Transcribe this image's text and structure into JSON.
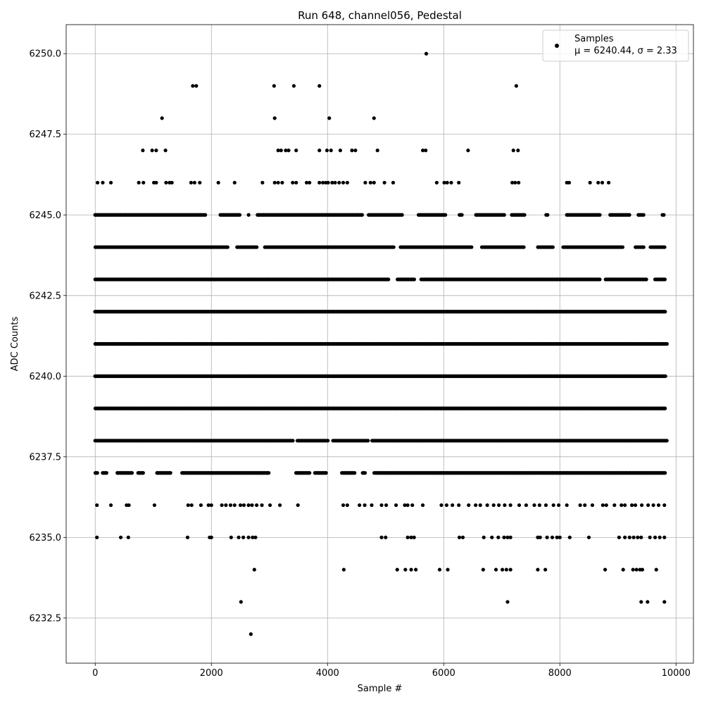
{
  "chart_data": {
    "type": "scatter",
    "title": "Run 648, channel056, Pedestal",
    "xlabel": "Sample #",
    "ylabel": "ADC Counts",
    "xlim": [
      -500,
      10300
    ],
    "ylim": [
      6231.1,
      6250.9
    ],
    "xticks": [
      0,
      2000,
      4000,
      6000,
      8000,
      10000
    ],
    "xtick_labels": [
      "0",
      "2000",
      "4000",
      "6000",
      "8000",
      "10000"
    ],
    "yticks": [
      6232.5,
      6235.0,
      6237.5,
      6240.0,
      6242.5,
      6245.0,
      6247.5,
      6250.0
    ],
    "ytick_labels": [
      "6232.5",
      "6235.0",
      "6237.5",
      "6240.0",
      "6242.5",
      "6245.0",
      "6247.5",
      "6250.0"
    ],
    "grid": true,
    "legend_position": "top-right",
    "series": [
      {
        "name": "Samples",
        "stats": "μ = 6240.44, σ = 2.33",
        "color": "#000000",
        "marker": "circle",
        "points": [
          [
            5700,
            6250
          ],
          [
            1680,
            6249
          ],
          [
            1740,
            6249
          ],
          [
            3080,
            6249
          ],
          [
            3420,
            6249
          ],
          [
            3860,
            6249
          ],
          [
            7250,
            6249
          ],
          [
            1150,
            6248
          ],
          [
            3090,
            6248
          ],
          [
            4030,
            6248
          ],
          [
            4800,
            6248
          ],
          [
            820,
            6247
          ],
          [
            980,
            6247
          ],
          [
            1050,
            6247
          ],
          [
            1210,
            6247
          ],
          [
            3150,
            6247
          ],
          [
            3200,
            6247
          ],
          [
            3280,
            6247
          ],
          [
            3330,
            6247
          ],
          [
            3460,
            6247
          ],
          [
            3860,
            6247
          ],
          [
            3990,
            6247
          ],
          [
            4060,
            6247
          ],
          [
            4220,
            6247
          ],
          [
            4420,
            6247
          ],
          [
            4480,
            6247
          ],
          [
            4860,
            6247
          ],
          [
            5640,
            6247
          ],
          [
            5690,
            6247
          ],
          [
            6420,
            6247
          ],
          [
            7200,
            6247
          ],
          [
            7280,
            6247
          ],
          [
            40,
            6246
          ],
          [
            130,
            6246
          ],
          [
            270,
            6246
          ],
          [
            750,
            6246
          ],
          [
            830,
            6246
          ],
          [
            1010,
            6246
          ],
          [
            1050,
            6246
          ],
          [
            1220,
            6246
          ],
          [
            1280,
            6246
          ],
          [
            1320,
            6246
          ],
          [
            1650,
            6246
          ],
          [
            1710,
            6246
          ],
          [
            1800,
            6246
          ],
          [
            2120,
            6246
          ],
          [
            2400,
            6246
          ],
          [
            2880,
            6246
          ],
          [
            3090,
            6246
          ],
          [
            3150,
            6246
          ],
          [
            3220,
            6246
          ],
          [
            3400,
            6246
          ],
          [
            3460,
            6246
          ],
          [
            3640,
            6246
          ],
          [
            3690,
            6246
          ],
          [
            3860,
            6246
          ],
          [
            3920,
            6246
          ],
          [
            3970,
            6246
          ],
          [
            4010,
            6246
          ],
          [
            4080,
            6246
          ],
          [
            4130,
            6246
          ],
          [
            4200,
            6246
          ],
          [
            4270,
            6246
          ],
          [
            4340,
            6246
          ],
          [
            4650,
            6246
          ],
          [
            4740,
            6246
          ],
          [
            4800,
            6246
          ],
          [
            4980,
            6246
          ],
          [
            5130,
            6246
          ],
          [
            5880,
            6246
          ],
          [
            6010,
            6246
          ],
          [
            6060,
            6246
          ],
          [
            6130,
            6246
          ],
          [
            6260,
            6246
          ],
          [
            7180,
            6246
          ],
          [
            7230,
            6246
          ],
          [
            7290,
            6246
          ],
          [
            8120,
            6246
          ],
          [
            8160,
            6246
          ],
          [
            8520,
            6246
          ],
          [
            8660,
            6246
          ],
          [
            8730,
            6246
          ],
          [
            8840,
            6246
          ],
          [
            30,
            6236
          ],
          [
            270,
            6236
          ],
          [
            540,
            6236
          ],
          [
            580,
            6236
          ],
          [
            1020,
            6236
          ],
          [
            1600,
            6236
          ],
          [
            1660,
            6236
          ],
          [
            1820,
            6236
          ],
          [
            1950,
            6236
          ],
          [
            2000,
            6236
          ],
          [
            2180,
            6236
          ],
          [
            2250,
            6236
          ],
          [
            2330,
            6236
          ],
          [
            2400,
            6236
          ],
          [
            2500,
            6236
          ],
          [
            2560,
            6236
          ],
          [
            2640,
            6236
          ],
          [
            2700,
            6236
          ],
          [
            2780,
            6236
          ],
          [
            2870,
            6236
          ],
          [
            3010,
            6236
          ],
          [
            3180,
            6236
          ],
          [
            3490,
            6236
          ],
          [
            4270,
            6236
          ],
          [
            4340,
            6236
          ],
          [
            4550,
            6236
          ],
          [
            4640,
            6236
          ],
          [
            4760,
            6236
          ],
          [
            4930,
            6236
          ],
          [
            5010,
            6236
          ],
          [
            5180,
            6236
          ],
          [
            5330,
            6236
          ],
          [
            5380,
            6236
          ],
          [
            5460,
            6236
          ],
          [
            5640,
            6236
          ],
          [
            5960,
            6236
          ],
          [
            6050,
            6236
          ],
          [
            6150,
            6236
          ],
          [
            6260,
            6236
          ],
          [
            6430,
            6236
          ],
          [
            6550,
            6236
          ],
          [
            6630,
            6236
          ],
          [
            6750,
            6236
          ],
          [
            6860,
            6236
          ],
          [
            6950,
            6236
          ],
          [
            7050,
            6236
          ],
          [
            7150,
            6236
          ],
          [
            7300,
            6236
          ],
          [
            7420,
            6236
          ],
          [
            7560,
            6236
          ],
          [
            7650,
            6236
          ],
          [
            7760,
            6236
          ],
          [
            7890,
            6236
          ],
          [
            7980,
            6236
          ],
          [
            8120,
            6236
          ],
          [
            8350,
            6236
          ],
          [
            8430,
            6236
          ],
          [
            8560,
            6236
          ],
          [
            8740,
            6236
          ],
          [
            8800,
            6236
          ],
          [
            8940,
            6236
          ],
          [
            9060,
            6236
          ],
          [
            9120,
            6236
          ],
          [
            9240,
            6236
          ],
          [
            9300,
            6236
          ],
          [
            9410,
            6236
          ],
          [
            9520,
            6236
          ],
          [
            9610,
            6236
          ],
          [
            9700,
            6236
          ],
          [
            9800,
            6236
          ],
          [
            30,
            6235
          ],
          [
            440,
            6235
          ],
          [
            570,
            6235
          ],
          [
            1590,
            6235
          ],
          [
            1970,
            6235
          ],
          [
            2000,
            6235
          ],
          [
            2340,
            6235
          ],
          [
            2470,
            6235
          ],
          [
            2550,
            6235
          ],
          [
            2640,
            6235
          ],
          [
            2710,
            6235
          ],
          [
            2760,
            6235
          ],
          [
            4930,
            6235
          ],
          [
            5000,
            6235
          ],
          [
            5380,
            6235
          ],
          [
            5440,
            6235
          ],
          [
            5490,
            6235
          ],
          [
            6270,
            6235
          ],
          [
            6330,
            6235
          ],
          [
            6690,
            6235
          ],
          [
            6830,
            6235
          ],
          [
            6940,
            6235
          ],
          [
            7040,
            6235
          ],
          [
            7100,
            6235
          ],
          [
            7150,
            6235
          ],
          [
            7620,
            6235
          ],
          [
            7660,
            6235
          ],
          [
            7780,
            6235
          ],
          [
            7870,
            6235
          ],
          [
            7950,
            6235
          ],
          [
            8000,
            6235
          ],
          [
            8170,
            6235
          ],
          [
            8500,
            6235
          ],
          [
            9020,
            6235
          ],
          [
            9120,
            6235
          ],
          [
            9200,
            6235
          ],
          [
            9270,
            6235
          ],
          [
            9340,
            6235
          ],
          [
            9400,
            6235
          ],
          [
            9550,
            6235
          ],
          [
            9640,
            6235
          ],
          [
            9720,
            6235
          ],
          [
            9800,
            6235
          ],
          [
            2740,
            6234
          ],
          [
            4280,
            6234
          ],
          [
            5200,
            6234
          ],
          [
            5340,
            6234
          ],
          [
            5440,
            6234
          ],
          [
            5520,
            6234
          ],
          [
            5930,
            6234
          ],
          [
            6070,
            6234
          ],
          [
            6680,
            6234
          ],
          [
            6900,
            6234
          ],
          [
            7010,
            6234
          ],
          [
            7080,
            6234
          ],
          [
            7150,
            6234
          ],
          [
            7620,
            6234
          ],
          [
            7750,
            6234
          ],
          [
            8780,
            6234
          ],
          [
            9090,
            6234
          ],
          [
            9260,
            6234
          ],
          [
            9320,
            6234
          ],
          [
            9380,
            6234
          ],
          [
            9420,
            6234
          ],
          [
            9660,
            6234
          ],
          [
            2510,
            6233
          ],
          [
            7100,
            6233
          ],
          [
            9400,
            6233
          ],
          [
            9510,
            6233
          ],
          [
            9800,
            6233
          ],
          [
            2680,
            6232
          ]
        ],
        "dense_rows": [
          {
            "y": 6245,
            "from": 0,
            "to": 9800,
            "step": 22,
            "gaps": [
              [
                1900,
                2140
              ],
              [
                2500,
                2640
              ],
              [
                2650,
                2780
              ],
              [
                4600,
                4700
              ],
              [
                5300,
                5550
              ],
              [
                6050,
                6250
              ],
              [
                6320,
                6550
              ],
              [
                7050,
                7150
              ],
              [
                7400,
                7750
              ],
              [
                7800,
                8100
              ],
              [
                8700,
                8850
              ],
              [
                9200,
                9350
              ],
              [
                9450,
                9750
              ]
            ]
          },
          {
            "y": 6244,
            "from": 0,
            "to": 9800,
            "step": 20,
            "gaps": [
              [
                2300,
                2440
              ],
              [
                2800,
                2900
              ],
              [
                5150,
                5250
              ],
              [
                6500,
                6650
              ],
              [
                7400,
                7600
              ],
              [
                7900,
                8050
              ],
              [
                9100,
                9300
              ],
              [
                9450,
                9550
              ]
            ]
          },
          {
            "y": 6243,
            "from": 0,
            "to": 9820,
            "step": 17,
            "gaps": [
              [
                5050,
                5200
              ],
              [
                5500,
                5600
              ],
              [
                8700,
                8780
              ],
              [
                9500,
                9620
              ]
            ]
          },
          {
            "y": 6242,
            "from": 0,
            "to": 9820,
            "step": 14,
            "gaps": []
          },
          {
            "y": 6241,
            "from": 0,
            "to": 9850,
            "step": 13,
            "gaps": []
          },
          {
            "y": 6240,
            "from": 0,
            "to": 9820,
            "step": 13,
            "gaps": []
          },
          {
            "y": 6239,
            "from": 0,
            "to": 9820,
            "step": 14,
            "gaps": []
          },
          {
            "y": 6238,
            "from": 0,
            "to": 9840,
            "step": 15,
            "gaps": [
              [
                3420,
                3470
              ],
              [
                4020,
                4080
              ],
              [
                4700,
                4760
              ]
            ]
          },
          {
            "y": 6237,
            "from": 0,
            "to": 9820,
            "step": 18,
            "gaps": [
              [
                40,
                120
              ],
              [
                200,
                380
              ],
              [
                640,
                720
              ],
              [
                830,
                1050
              ],
              [
                1300,
                1480
              ],
              [
                3000,
                3450
              ],
              [
                3700,
                3780
              ],
              [
                3980,
                4240
              ],
              [
                4470,
                4600
              ],
              [
                4650,
                4800
              ]
            ]
          }
        ]
      }
    ]
  }
}
